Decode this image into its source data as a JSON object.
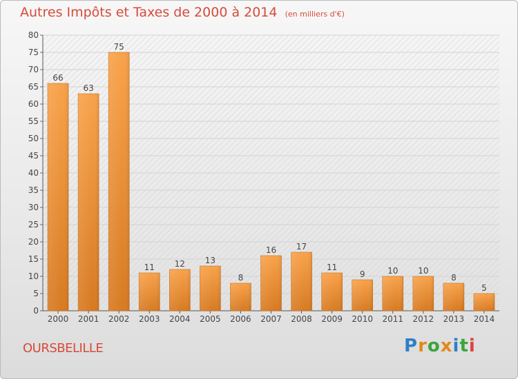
{
  "header": {
    "title": "Autres Impôts et Taxes de 2000 à 2014",
    "unit": "(en milliers d'€)"
  },
  "footer": {
    "commune": "OURSBELILLE",
    "logo_text": "Proxiti",
    "logo_colors": [
      "#2f7fc8",
      "#e08a1e",
      "#3aa53a",
      "#e08a1e",
      "#2f7fc8",
      "#3aa53a",
      "#e04040"
    ]
  },
  "colors": {
    "bar_light": "#f8a24a",
    "bar_dark": "#d77a22",
    "title": "#d74a3a"
  },
  "chart_data": {
    "type": "bar",
    "categories": [
      "2000",
      "2001",
      "2002",
      "2003",
      "2004",
      "2005",
      "2006",
      "2007",
      "2008",
      "2009",
      "2010",
      "2011",
      "2012",
      "2013",
      "2014"
    ],
    "values": [
      66,
      63,
      75,
      11,
      12,
      13,
      8,
      16,
      17,
      11,
      9,
      10,
      10,
      8,
      5
    ],
    "title": "Autres Impôts et Taxes de 2000 à 2014",
    "ylim": [
      0,
      80
    ],
    "yticks": [
      0,
      5,
      10,
      15,
      20,
      25,
      30,
      35,
      40,
      45,
      50,
      55,
      60,
      65,
      70,
      75,
      80
    ],
    "grid": true,
    "data_labels": true
  }
}
